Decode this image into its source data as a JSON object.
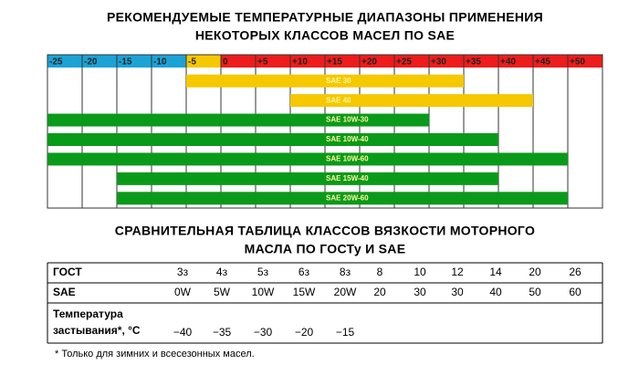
{
  "chart_data": {
    "type": "range-bar",
    "title": [
      "РЕКОМЕНДУЕМЫЕ ТЕМПЕРАТУРНЫЕ ДИАПАЗОНЫ ПРИМЕНЕНИЯ",
      "НЕКОТОРЫХ КЛАССОВ МАСЕЛ ПО SAE"
    ],
    "xlim": [
      -25,
      55
    ],
    "xticks": [
      -25,
      -20,
      -15,
      -10,
      -5,
      0,
      {
        "value": 5,
        "label": "+5"
      },
      {
        "value": 10,
        "label": "+10"
      },
      {
        "value": 15,
        "label": "+15"
      },
      {
        "value": 20,
        "label": "+20"
      },
      {
        "value": 25,
        "label": "+25"
      },
      {
        "value": 30,
        "label": "+30"
      },
      {
        "value": 35,
        "label": "+35"
      },
      {
        "value": 40,
        "label": "+40"
      },
      {
        "value": 45,
        "label": "+45"
      },
      {
        "value": 50,
        "label": "+50"
      }
    ],
    "xtick_colors": [
      "#1ba3d6",
      "#1ba3d6",
      "#1ba3d6",
      "#1ba3d6",
      "#f5c800",
      "#ee1c1c",
      "#ee1c1c",
      "#ee1c1c",
      "#ee1c1c",
      "#ee1c1c",
      "#ee1c1c",
      "#ee1c1c",
      "#ee1c1c",
      "#ee1c1c",
      "#ee1c1c",
      "#ee1c1c"
    ],
    "grid": true,
    "series": [
      {
        "name": "SAE 30",
        "color": "#f5c800",
        "values": [
          -5,
          35
        ]
      },
      {
        "name": "SAE 40",
        "color": "#f5c800",
        "values": [
          10,
          45
        ]
      },
      {
        "name": "SAE 10W-30",
        "color": "#0a9a1a",
        "values": [
          -25,
          30
        ]
      },
      {
        "name": "SAE 10W-40",
        "color": "#0a9a1a",
        "values": [
          -25,
          40
        ]
      },
      {
        "name": "SAE 10W-60",
        "color": "#0a9a1a",
        "values": [
          -25,
          50
        ]
      },
      {
        "name": "SAE 15W-40",
        "color": "#0a9a1a",
        "values": [
          -15,
          40
        ]
      },
      {
        "name": "SAE 20W-60",
        "color": "#0a9a1a",
        "values": [
          -15,
          50
        ]
      }
    ]
  },
  "table": {
    "title": [
      "СРАВНИТЕЛЬНАЯ ТАБЛИЦА КЛАССОВ ВЯЗКОСТИ МОТОРНОГО",
      "МАСЛА ПО ГОСТу И SAE"
    ],
    "rows": [
      [
        [
          "ГОСТ"
        ],
        "3з",
        "4з",
        "5з",
        "6з",
        "8з",
        "8",
        "10",
        "12",
        "14",
        "20",
        "26"
      ],
      [
        [
          "SAE"
        ],
        "0W",
        "5W",
        "10W",
        "15W",
        "20W",
        "20",
        "30",
        "30",
        "40",
        "50",
        "60"
      ],
      [
        [
          "Температура",
          "застывания*, °C"
        ],
        "−40",
        "−35",
        "−30",
        "−20",
        "−15",
        null,
        null,
        null,
        null,
        null,
        null
      ]
    ],
    "footnote": "* Только для зимних и всесезонных масел."
  }
}
